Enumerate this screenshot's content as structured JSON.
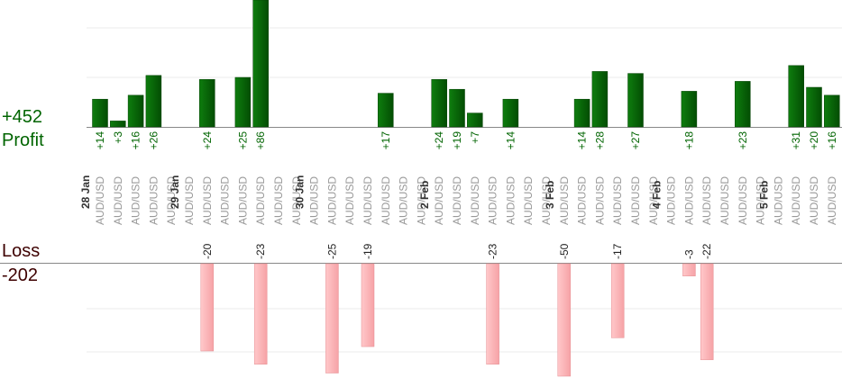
{
  "summary": {
    "profit_value": "+452",
    "profit_label": "Profit",
    "loss_label": "Loss",
    "loss_value": "-202"
  },
  "colors": {
    "profit_bar": "#0b6b0b",
    "loss_bar": "#ffb6b9",
    "profit_text": "#006400",
    "loss_text": "#3d0000"
  },
  "chart_data": {
    "type": "bar",
    "categories": [
      "AUD/USD",
      "AUD/USD",
      "AUD/USD",
      "AUD/USD",
      "AUD/USD",
      "AUD/USD",
      "AUD/USD",
      "AUD/USD",
      "AUD/USD",
      "AUD/USD",
      "AUD/USD",
      "AUD/USD",
      "AUD/USD",
      "AUD/USD",
      "AUD/USD",
      "AUD/USD",
      "AUD/USD",
      "AUD/USD",
      "AUD/USD",
      "AUD/USD",
      "AUD/USD",
      "AUD/USD",
      "AUD/USD",
      "AUD/USD",
      "AUD/USD",
      "AUD/USD",
      "AUD/USD",
      "AUD/USD",
      "AUD/USD",
      "AUD/USD",
      "AUD/USD",
      "AUD/USD",
      "AUD/USD",
      "AUD/USD",
      "AUD/USD",
      "AUD/USD",
      "AUD/USD",
      "AUD/USD",
      "AUD/USD",
      "AUD/USD",
      "AUD/USD",
      "AUD/USD"
    ],
    "day_groups": [
      {
        "label": "28 Jan",
        "start": 0
      },
      {
        "label": "29 Jan",
        "start": 5
      },
      {
        "label": "30 Jan",
        "start": 12
      },
      {
        "label": "2 Feb",
        "start": 19
      },
      {
        "label": "3 Feb",
        "start": 26
      },
      {
        "label": "4 Feb",
        "start": 32
      },
      {
        "label": "5 Feb",
        "start": 38
      }
    ],
    "series": [
      {
        "name": "Profit",
        "values": [
          14,
          3,
          16,
          26,
          0,
          0,
          24,
          0,
          25,
          86,
          0,
          0,
          0,
          0,
          0,
          0,
          17,
          0,
          0,
          24,
          19,
          7,
          0,
          14,
          0,
          0,
          0,
          14,
          28,
          0,
          27,
          0,
          0,
          18,
          0,
          0,
          23,
          0,
          0,
          31,
          20,
          16
        ]
      },
      {
        "name": "Loss",
        "values": [
          0,
          0,
          0,
          0,
          0,
          0,
          -20,
          0,
          0,
          -23,
          0,
          0,
          0,
          -25,
          0,
          -19,
          0,
          0,
          0,
          0,
          0,
          0,
          -23,
          0,
          0,
          0,
          -50,
          0,
          0,
          -17,
          0,
          0,
          0,
          -3,
          -22,
          0,
          0,
          0,
          0,
          0,
          0,
          0
        ]
      }
    ],
    "profit_labels": [
      "+14",
      "+3",
      "+16",
      "+26",
      "",
      "",
      "+24",
      "",
      "+25",
      "+86",
      "",
      "",
      "",
      "",
      "",
      "",
      "+17",
      "",
      "",
      "+24",
      "+19",
      "+7",
      "",
      "+14",
      "",
      "",
      "",
      "+14",
      "+28",
      "",
      "+27",
      "",
      "",
      "+18",
      "",
      "",
      "+23",
      "",
      "",
      "+31",
      "+20",
      "+16"
    ],
    "loss_labels": [
      "",
      "",
      "",
      "",
      "",
      "",
      "-20",
      "",
      "",
      "-23",
      "",
      "",
      "",
      "-25",
      "",
      "-19",
      "",
      "",
      "",
      "",
      "",
      "",
      "-23",
      "",
      "",
      "",
      "-50",
      "",
      "",
      "-17",
      "",
      "",
      "",
      "-3",
      "-22",
      "",
      "",
      "",
      "",
      "",
      "",
      ""
    ],
    "profit_axis_max": 25,
    "loss_axis_min": -25,
    "grid": true
  }
}
